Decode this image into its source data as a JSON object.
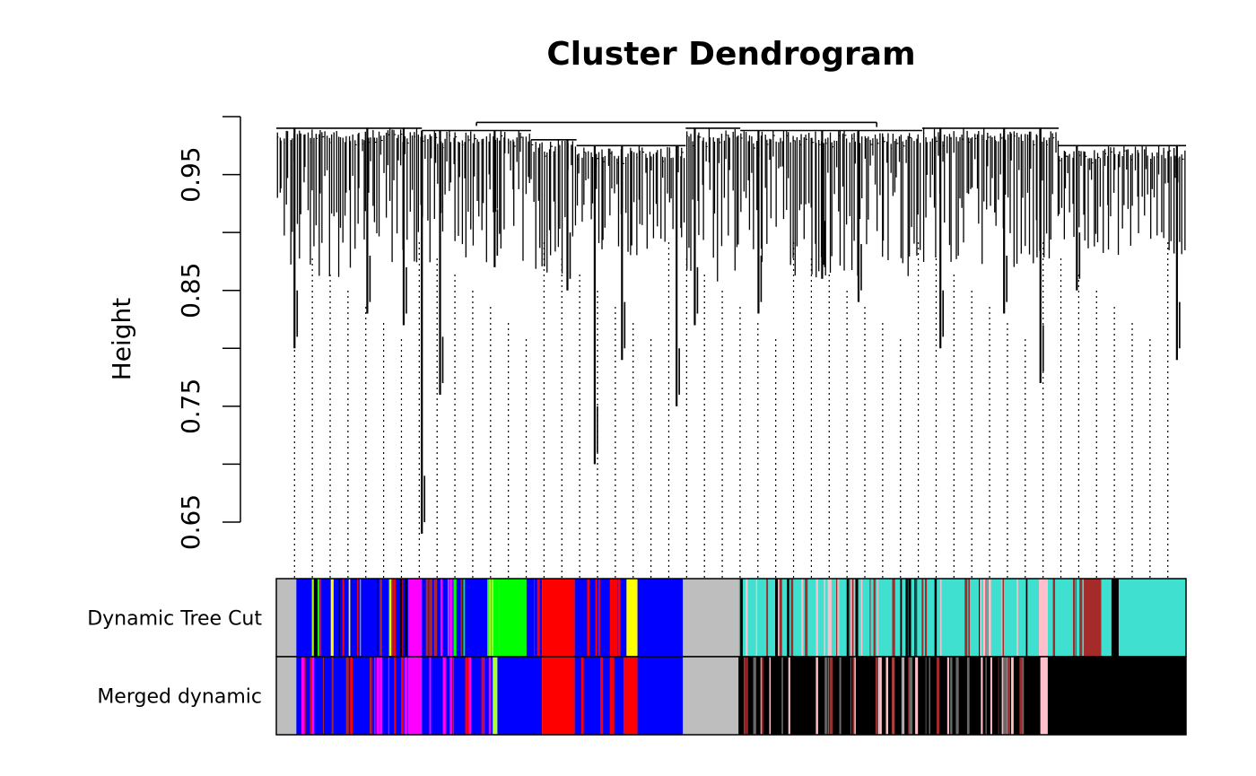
{
  "chart_data": {
    "type": "dendrogram",
    "title": "Cluster Dendrogram",
    "ylabel": "Height",
    "ylim": [
      0.65,
      1.0
    ],
    "y_ticks": [
      0.65,
      0.75,
      0.85,
      0.95
    ],
    "y_tick_labels": [
      "0.65",
      "0.75",
      "0.85",
      "0.95"
    ],
    "dendrogram_top": 0.995,
    "groups": [
      {
        "start": 0.0,
        "end": 0.16,
        "merge": 0.99,
        "leaf_min": 0.86,
        "deep": [
          {
            "at": 0.02,
            "to": 0.8
          },
          {
            "at": 0.1,
            "to": 0.83
          },
          {
            "at": 0.14,
            "to": 0.82
          }
        ]
      },
      {
        "start": 0.16,
        "end": 0.28,
        "merge": 0.988,
        "leaf_min": 0.87,
        "deep": [
          {
            "at": 0.16,
            "to": 0.64
          },
          {
            "at": 0.18,
            "to": 0.76
          },
          {
            "at": 0.24,
            "to": 0.87
          }
        ]
      },
      {
        "start": 0.28,
        "end": 0.33,
        "merge": 0.98,
        "leaf_min": 0.86,
        "deep": [
          {
            "at": 0.32,
            "to": 0.85
          }
        ]
      },
      {
        "start": 0.33,
        "end": 0.45,
        "merge": 0.975,
        "leaf_min": 0.88,
        "deep": [
          {
            "at": 0.35,
            "to": 0.7
          },
          {
            "at": 0.38,
            "to": 0.79
          },
          {
            "at": 0.44,
            "to": 0.75
          }
        ]
      },
      {
        "start": 0.45,
        "end": 0.51,
        "merge": 0.99,
        "leaf_min": 0.83,
        "deep": [
          {
            "at": 0.46,
            "to": 0.82
          }
        ]
      },
      {
        "start": 0.51,
        "end": 0.71,
        "merge": 0.988,
        "leaf_min": 0.86,
        "deep": [
          {
            "at": 0.53,
            "to": 0.83
          },
          {
            "at": 0.6,
            "to": 0.86
          },
          {
            "at": 0.64,
            "to": 0.84
          }
        ]
      },
      {
        "start": 0.71,
        "end": 0.86,
        "merge": 0.99,
        "leaf_min": 0.87,
        "deep": [
          {
            "at": 0.73,
            "to": 0.8
          },
          {
            "at": 0.8,
            "to": 0.83
          },
          {
            "at": 0.84,
            "to": 0.77
          }
        ]
      },
      {
        "start": 0.86,
        "end": 1.0,
        "merge": 0.975,
        "leaf_min": 0.88,
        "deep": [
          {
            "at": 0.88,
            "to": 0.85
          },
          {
            "at": 0.99,
            "to": 0.79
          }
        ]
      }
    ],
    "color_rows": [
      {
        "label": "Dynamic Tree Cut",
        "segments": [
          {
            "start": 0.0,
            "end": 0.022,
            "color": "#bebebe"
          },
          {
            "start": 0.022,
            "end": 0.145,
            "color": "#0000ff",
            "stripes": [
              "#ffff00",
              "#a52a2a",
              "#ff0000",
              "#00ff00",
              "#000000"
            ]
          },
          {
            "start": 0.145,
            "end": 0.16,
            "color": "#ff00ff"
          },
          {
            "start": 0.16,
            "end": 0.232,
            "color": "#0000ff",
            "stripes": [
              "#a52a2a",
              "#00ff00",
              "#ff00ff"
            ]
          },
          {
            "start": 0.232,
            "end": 0.245,
            "color": "#00ff00",
            "stripes": [
              "#adff2f"
            ]
          },
          {
            "start": 0.245,
            "end": 0.275,
            "color": "#00ff00"
          },
          {
            "start": 0.275,
            "end": 0.292,
            "color": "#0000ff",
            "stripes": [
              "#ff0000"
            ]
          },
          {
            "start": 0.292,
            "end": 0.328,
            "color": "#ff0000"
          },
          {
            "start": 0.328,
            "end": 0.385,
            "color": "#0000ff",
            "stripes": [
              "#ff0000"
            ]
          },
          {
            "start": 0.385,
            "end": 0.397,
            "color": "#ffff00"
          },
          {
            "start": 0.397,
            "end": 0.447,
            "color": "#0000ff"
          },
          {
            "start": 0.447,
            "end": 0.508,
            "color": "#bebebe"
          },
          {
            "start": 0.508,
            "end": 0.84,
            "color": "#40e0d0",
            "stripes": [
              "#a52a2a",
              "#000000",
              "#ffc0cb"
            ]
          },
          {
            "start": 0.84,
            "end": 0.848,
            "color": "#ffc0cb"
          },
          {
            "start": 0.848,
            "end": 0.888,
            "color": "#40e0d0",
            "stripes": [
              "#a52a2a"
            ]
          },
          {
            "start": 0.888,
            "end": 0.907,
            "color": "#a52a2a"
          },
          {
            "start": 0.907,
            "end": 0.918,
            "color": "#40e0d0"
          },
          {
            "start": 0.918,
            "end": 0.926,
            "color": "#000000"
          },
          {
            "start": 0.926,
            "end": 1.0,
            "color": "#40e0d0"
          }
        ]
      },
      {
        "label": "Merged dynamic",
        "segments": [
          {
            "start": 0.0,
            "end": 0.022,
            "color": "#bebebe"
          },
          {
            "start": 0.022,
            "end": 0.145,
            "color": "#0000ff",
            "stripes": [
              "#ff0000",
              "#ff00ff",
              "#a52a2a"
            ]
          },
          {
            "start": 0.145,
            "end": 0.16,
            "color": "#ff00ff"
          },
          {
            "start": 0.16,
            "end": 0.238,
            "color": "#0000ff",
            "stripes": [
              "#ff0000",
              "#ff00ff"
            ]
          },
          {
            "start": 0.238,
            "end": 0.243,
            "color": "#adff2f"
          },
          {
            "start": 0.243,
            "end": 0.292,
            "color": "#0000ff"
          },
          {
            "start": 0.292,
            "end": 0.328,
            "color": "#ff0000"
          },
          {
            "start": 0.328,
            "end": 0.385,
            "color": "#0000ff",
            "stripes": [
              "#ff0000"
            ]
          },
          {
            "start": 0.385,
            "end": 0.397,
            "color": "#ff0000"
          },
          {
            "start": 0.397,
            "end": 0.447,
            "color": "#0000ff"
          },
          {
            "start": 0.447,
            "end": 0.508,
            "color": "#bebebe"
          },
          {
            "start": 0.508,
            "end": 0.84,
            "color": "#000000",
            "stripes": [
              "#a52a2a",
              "#ffc0cb",
              "#696969"
            ]
          },
          {
            "start": 0.84,
            "end": 0.848,
            "color": "#ffc0cb"
          },
          {
            "start": 0.848,
            "end": 1.0,
            "color": "#000000"
          }
        ]
      }
    ],
    "leaf_guides": 50
  }
}
